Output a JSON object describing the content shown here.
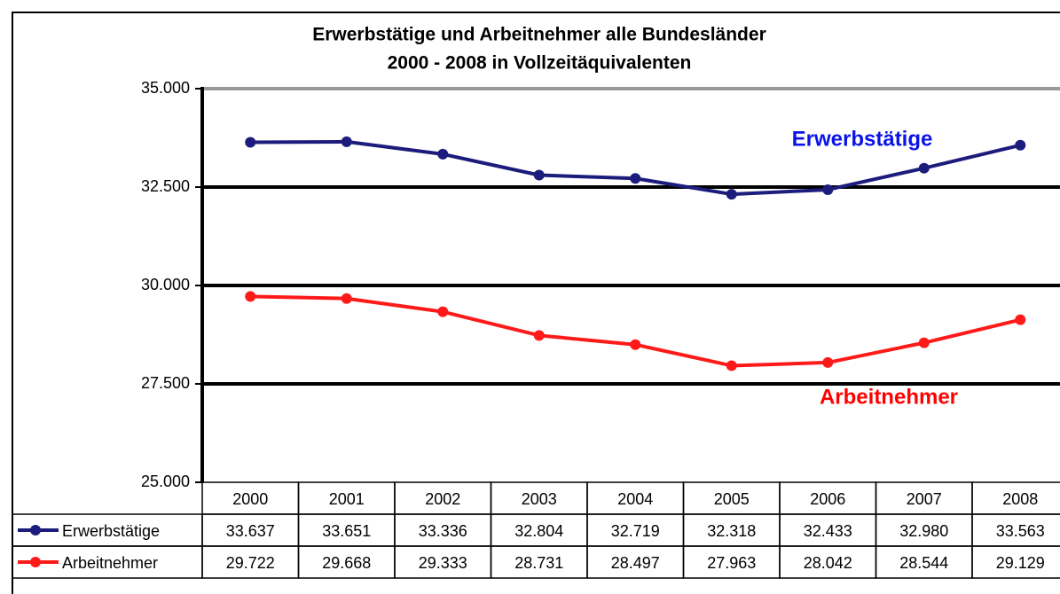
{
  "chart_data": {
    "type": "line",
    "title": "Erwerbstätige  und Arbeitnehmer alle Bundesländer",
    "subtitle": "2000 - 2008 in Vollzeitäquivalenten",
    "categories": [
      "2000",
      "2001",
      "2002",
      "2003",
      "2004",
      "2005",
      "2006",
      "2007",
      "2008"
    ],
    "series": [
      {
        "name": "Erwerbstätige",
        "color": "#1c1c7c",
        "values": [
          33637,
          33651,
          33336,
          32804,
          32719,
          32318,
          32433,
          32980,
          33563
        ],
        "value_labels": [
          "33.637",
          "33.651",
          "33.336",
          "32.804",
          "32.719",
          "32.318",
          "32.433",
          "32.980",
          "33.563"
        ]
      },
      {
        "name": "Arbeitnehmer",
        "color": "#ff1a1a",
        "values": [
          29722,
          29668,
          29333,
          28731,
          28497,
          27963,
          28042,
          28544,
          29129
        ],
        "value_labels": [
          "29.722",
          "29.668",
          "29.333",
          "28.731",
          "28.497",
          "27.963",
          "28.042",
          "28.544",
          "29.129"
        ]
      }
    ],
    "ylim": [
      25000,
      35000
    ],
    "yticks": [
      {
        "value": 25000,
        "label": "25.000"
      },
      {
        "value": 27500,
        "label": "27.500"
      },
      {
        "value": 30000,
        "label": "30.000"
      },
      {
        "value": 32500,
        "label": "32.500"
      },
      {
        "value": 35000,
        "label": "35.000"
      }
    ],
    "grid": true
  }
}
